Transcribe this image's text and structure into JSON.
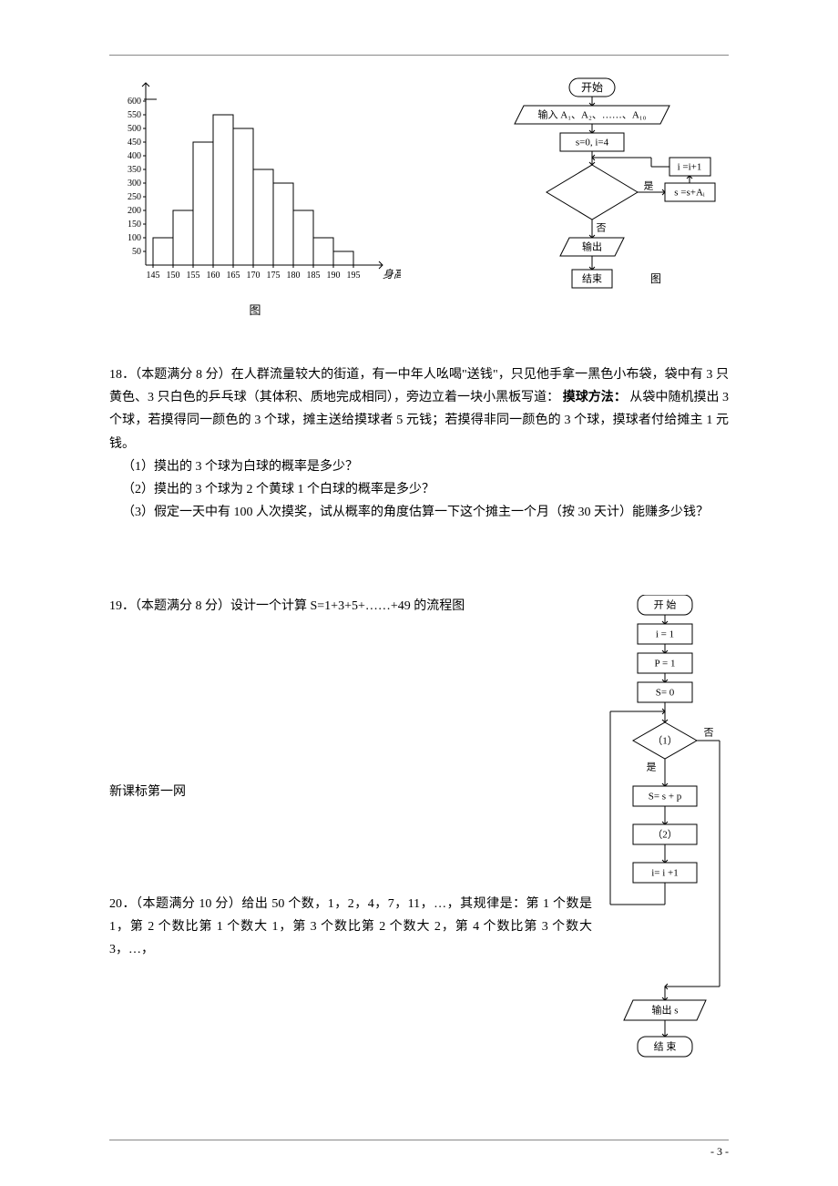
{
  "histogram": {
    "type": "histogram",
    "x_label": "身高(cm)",
    "x_label_fontstyle": "italic",
    "x_ticks": [
      145,
      150,
      155,
      160,
      165,
      170,
      175,
      180,
      185,
      190,
      195
    ],
    "y_ticks": [
      50,
      100,
      150,
      200,
      250,
      300,
      350,
      400,
      450,
      500,
      550,
      600
    ],
    "bar_values": [
      100,
      200,
      450,
      550,
      500,
      350,
      300,
      200,
      100,
      50
    ],
    "bar_color": "#ffffff",
    "bar_border": "#000000",
    "axis_color": "#000000",
    "caption": "图"
  },
  "flowchart_top": {
    "caption": "图",
    "nodes": {
      "start": "开始",
      "input": "输入 A₁、A₂、……、A₁₀",
      "init": "s=0,  i=4",
      "decision": "",
      "inc": "i =i+1",
      "acc": "s =s+Aᵢ",
      "output": "输出",
      "end": "结束",
      "yes": "是",
      "no": "否"
    }
  },
  "q18": {
    "header": "18．（本题满分 8 分）在人群流量较大的街道，有一中年人吆喝\"送钱\"，只见他手拿一黑色小布袋，袋中有 3 只黄色、3 只白色的乒乓球（其体积、质地完成相同），旁边立着一块小黑板写道：",
    "method_label": "摸球方法：",
    "method_text": "从袋中随机摸出 3 个球，若摸得同一颜色的 3 个球，摊主送给摸球者 5 元钱；若摸得非同一颜色的 3 个球，摸球者付给摊主 1 元钱。",
    "items": [
      "（1）摸出的 3 个球为白球的概率是多少？",
      "（2）摸出的 3 个球为 2 个黄球 1 个白球的概率是多少？",
      "（3）假定一天中有 100 人次摸奖，试从概率的角度估算一下这个摊主一个月（按 30 天计）能赚多少钱？"
    ]
  },
  "q19": {
    "text": "19．（本题满分 8 分）设计一个计算 S=1+3+5+……+49 的流程图",
    "flow": {
      "start": "开 始",
      "i1": "i = 1",
      "p1": "P = 1",
      "s0": "S= 0",
      "d1": "（1）",
      "yes": "是",
      "no": "否",
      "sp": "S= s + p",
      "d2": "（2）",
      "inc": "i= i +1",
      "out": "输出  s",
      "end": "结 束"
    }
  },
  "site": "新课标第一网",
  "q20": "20．（本题满分 10 分）给出 50 个数，1，2，4，7，11，…，其规律是：第 1 个数是 1，第 2 个数比第 1 个数大 1，第 3 个数比第 2 个数大 2，第 4 个数比第 3 个数大 3，…，",
  "page_number": "- 3 -"
}
